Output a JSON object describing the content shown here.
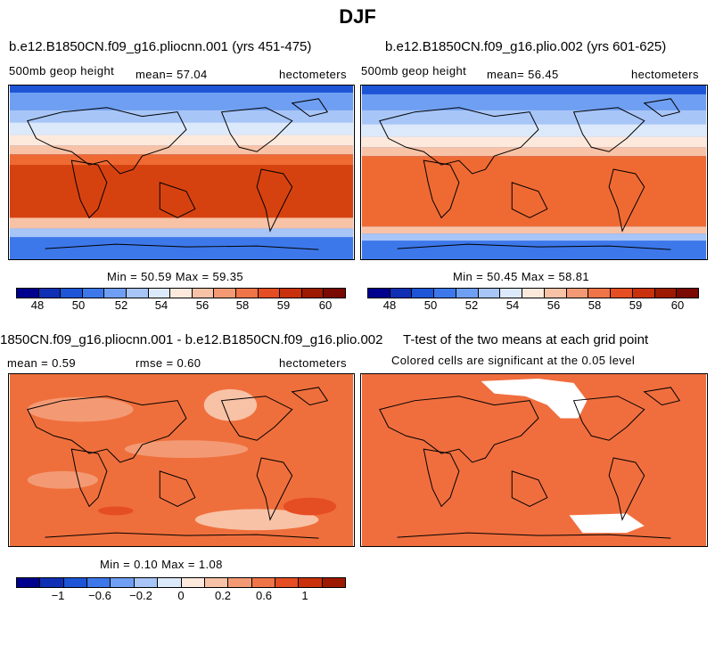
{
  "figure": {
    "title": "DJF"
  },
  "panels": [
    {
      "title": "b.e12.B1850CN.f09_g16.pliocnn.001 (yrs 451-475)",
      "variable": "500mb geop height",
      "mean": "mean=   57.04",
      "units": "hectometers",
      "stats": "Min =   50.59  Max =   59.35"
    },
    {
      "title": "b.e12.B1850CN.f09_g16.plio.002 (yrs 601-625)",
      "variable": "500mb geop height",
      "mean": "mean=   56.45",
      "units": "hectometers",
      "stats": "Min =   50.45  Max =   58.81"
    },
    {
      "title": "1850CN.f09_g16.pliocnn.001 - b.e12.B1850CN.f09_g16.plio.002",
      "mean": "mean =    0.59",
      "rmse": "rmse =    0.60",
      "units": "hectometers",
      "stats": "Min =    0.10  Max =    1.08"
    },
    {
      "title": "T-test of the two means at each grid point",
      "subtitle": "Colored cells are significant at the 0.05 level"
    }
  ],
  "colorbar_levels": [
    "48",
    "50",
    "52",
    "54",
    "56",
    "58",
    "59",
    "60"
  ],
  "diff_colorbar_levels": [
    "−1",
    "−0.6",
    "−0.2",
    "0",
    "0.2",
    "0.6",
    "1"
  ],
  "colors": {
    "palette": [
      "#00008f",
      "#0f2fb5",
      "#1e55d6",
      "#3d78ea",
      "#6f9ff2",
      "#a7c5f7",
      "#dce9fb",
      "#fde9dc",
      "#f8c2a6",
      "#f39a74",
      "#ef7448",
      "#e54d23",
      "#c9310d",
      "#9d1a00",
      "#7a0900"
    ],
    "deep_red": "#d6420f",
    "orange_red": "#ef6a33",
    "diff_base": "#ef6f3c",
    "ttest_fill": "#f06e3e",
    "land_outline": "#000000"
  }
}
